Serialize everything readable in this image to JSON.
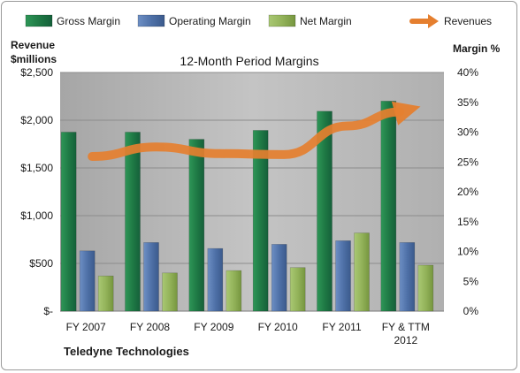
{
  "chart_data": {
    "type": "bar",
    "title": "12-Month Period Margins",
    "categories": [
      "FY 2007",
      "FY 2008",
      "FY 2009",
      "FY 2010",
      "FY 2011",
      "FY & TTM 2012"
    ],
    "series": [
      {
        "name": "Gross Margin",
        "axis": "right",
        "unit": "%",
        "color": "#1f7a45",
        "values": [
          30.0,
          30.0,
          28.8,
          30.3,
          33.5,
          35.2
        ]
      },
      {
        "name": "Operating Margin",
        "axis": "right",
        "unit": "%",
        "color": "#4f71a8",
        "values": [
          10.1,
          11.5,
          10.5,
          11.2,
          11.8,
          11.5
        ]
      },
      {
        "name": "Net Margin",
        "axis": "right",
        "unit": "%",
        "color": "#93b35a",
        "values": [
          5.9,
          6.4,
          6.8,
          7.3,
          13.1,
          7.7
        ]
      },
      {
        "name": "Revenues",
        "type": "line",
        "axis": "left",
        "unit": "$millions",
        "color": "#e57f2f",
        "values": [
          1620,
          1720,
          1650,
          1640,
          1940,
          2120
        ]
      }
    ],
    "left_axis": {
      "label_line1": "Revenue",
      "label_line2": "$millions",
      "ylim": [
        0,
        2500
      ],
      "ticks": [
        {
          "value": 0,
          "label": "$-"
        },
        {
          "value": 500,
          "label": "$500"
        },
        {
          "value": 1000,
          "label": "$1,000"
        },
        {
          "value": 1500,
          "label": "$1,500"
        },
        {
          "value": 2000,
          "label": "$2,000"
        },
        {
          "value": 2500,
          "label": "$2,500"
        }
      ]
    },
    "right_axis": {
      "label": "Margin %",
      "ylim": [
        0,
        40
      ],
      "ticks": [
        {
          "value": 0,
          "label": "0%"
        },
        {
          "value": 5,
          "label": "5%"
        },
        {
          "value": 10,
          "label": "10%"
        },
        {
          "value": 15,
          "label": "15%"
        },
        {
          "value": 20,
          "label": "20%"
        },
        {
          "value": 25,
          "label": "25%"
        },
        {
          "value": 30,
          "label": "30%"
        },
        {
          "value": 35,
          "label": "35%"
        },
        {
          "value": 40,
          "label": "40%"
        }
      ]
    },
    "x_tick_labels": [
      [
        "FY 2007"
      ],
      [
        "FY 2008"
      ],
      [
        "FY 2009"
      ],
      [
        "FY 2010"
      ],
      [
        "FY 2011"
      ],
      [
        "FY & TTM",
        "2012"
      ]
    ],
    "grid": "horizontal",
    "legend_position": "top",
    "plot_background": "#bdbdbd",
    "company": "Teledyne Technologies"
  }
}
